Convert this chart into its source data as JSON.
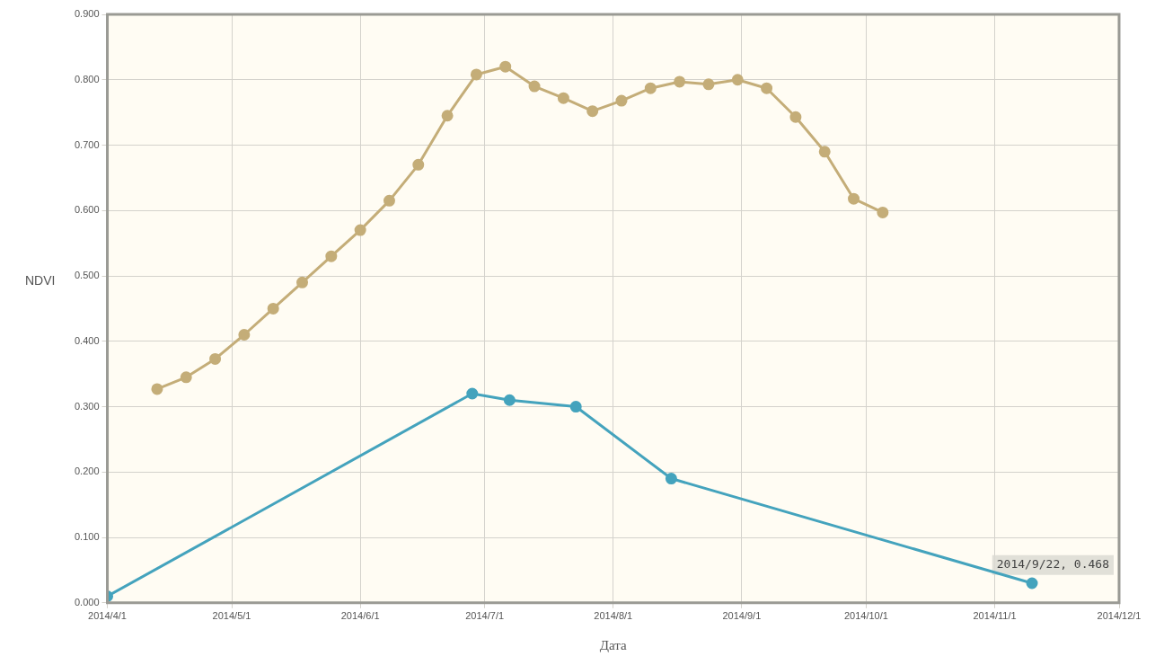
{
  "chart_data": {
    "type": "line",
    "xlabel": "Дата",
    "ylabel": "NDVI",
    "xlim": [
      "2014-04-01",
      "2014-12-01"
    ],
    "xticks": [
      {
        "value": "2014-04-01",
        "label": "2014/4/1"
      },
      {
        "value": "2014-05-01",
        "label": "2014/5/1"
      },
      {
        "value": "2014-06-01",
        "label": "2014/6/1"
      },
      {
        "value": "2014-07-01",
        "label": "2014/7/1"
      },
      {
        "value": "2014-08-01",
        "label": "2014/8/1"
      },
      {
        "value": "2014-09-01",
        "label": "2014/9/1"
      },
      {
        "value": "2014-10-01",
        "label": "2014/10/1"
      },
      {
        "value": "2014-11-01",
        "label": "2014/11/1"
      },
      {
        "value": "2014-12-01",
        "label": "2014/12/1"
      }
    ],
    "ylim": [
      0,
      0.9
    ],
    "yticks": [
      {
        "value": 0,
        "label": "0.000"
      },
      {
        "value": 0.1,
        "label": "0.100"
      },
      {
        "value": 0.2,
        "label": "0.200"
      },
      {
        "value": 0.3,
        "label": "0.300"
      },
      {
        "value": 0.4,
        "label": "0.400"
      },
      {
        "value": 0.5,
        "label": "0.500"
      },
      {
        "value": 0.6,
        "label": "0.600"
      },
      {
        "value": 0.7,
        "label": "0.700"
      },
      {
        "value": 0.8,
        "label": "0.800"
      },
      {
        "value": 0.9,
        "label": "0.900"
      }
    ],
    "grid": true,
    "legend": false,
    "marker": "circle",
    "line_style": "solid",
    "annotations": [
      "2014/9/22, 0.468"
    ],
    "series": [
      {
        "color": "#c4ad78",
        "x": [
          "2014-04-13",
          "2014-04-20",
          "2014-04-27",
          "2014-05-04",
          "2014-05-11",
          "2014-05-18",
          "2014-05-25",
          "2014-06-01",
          "2014-06-08",
          "2014-06-15",
          "2014-06-22",
          "2014-06-29",
          "2014-07-06",
          "2014-07-13",
          "2014-07-20",
          "2014-07-27",
          "2014-08-03",
          "2014-08-10",
          "2014-08-17",
          "2014-08-24",
          "2014-08-31",
          "2014-09-07",
          "2014-09-14",
          "2014-09-21",
          "2014-09-28",
          "2014-10-05"
        ],
        "values": [
          0.327,
          0.345,
          0.373,
          0.41,
          0.45,
          0.49,
          0.53,
          0.57,
          0.615,
          0.67,
          0.745,
          0.808,
          0.82,
          0.79,
          0.772,
          0.752,
          0.768,
          0.787,
          0.797,
          0.793,
          0.8,
          0.787,
          0.743,
          0.69,
          0.618,
          0.597
        ]
      },
      {
        "color": "#44a3bd",
        "x": [
          "2014-04-01",
          "2014-06-28",
          "2014-07-07",
          "2014-07-23",
          "2014-08-15",
          "2014-11-10"
        ],
        "values": [
          0.01,
          0.32,
          0.31,
          0.3,
          0.19,
          0.03
        ]
      }
    ]
  }
}
